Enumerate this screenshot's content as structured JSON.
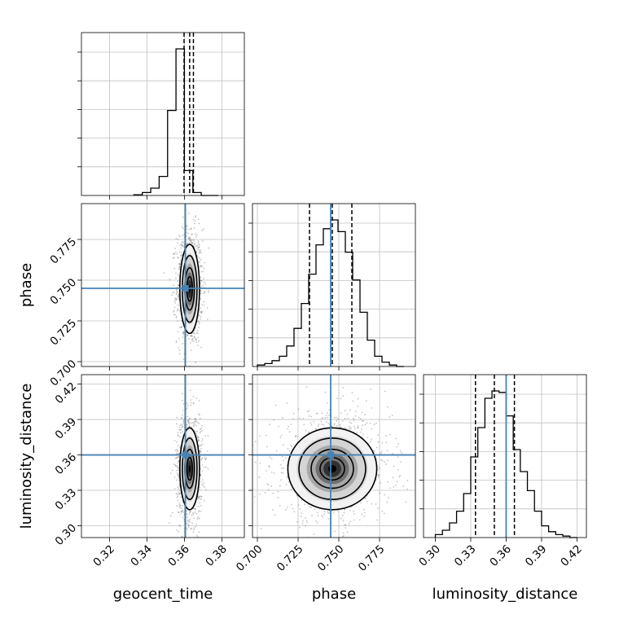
{
  "chart_data": {
    "type": "corner",
    "colors": {
      "truth": "#4682b4",
      "hist": "#000000",
      "grid": "#c0c0c0",
      "scatter": "#555555"
    },
    "parameters": [
      {
        "name": "geocent_time",
        "label": "geocent_time",
        "ticks": [
          "0.32",
          "0.34",
          "0.36",
          "0.38"
        ],
        "tick_values": [
          0.32,
          0.34,
          0.36,
          0.38
        ],
        "range": [
          0.305,
          0.392
        ],
        "truth": 0.3605,
        "quantiles": [
          0.3598,
          0.3628,
          0.3648
        ],
        "hist": {
          "edges": [
            0.333,
            0.3375,
            0.342,
            0.3465,
            0.351,
            0.3555,
            0.36,
            0.3645,
            0.369,
            0.3735,
            0.378
          ],
          "counts": [
            0.005,
            0.02,
            0.05,
            0.13,
            0.58,
            1.0,
            0.17,
            0.02,
            0.0,
            0.0
          ]
        }
      },
      {
        "name": "phase",
        "label": "phase",
        "ticks": [
          "0.700",
          "0.725",
          "0.750",
          "0.775"
        ],
        "tick_values": [
          0.7,
          0.725,
          0.75,
          0.775
        ],
        "range": [
          0.697,
          0.797
        ],
        "truth": 0.745,
        "quantiles": [
          0.732,
          0.746,
          0.758
        ],
        "hist": {
          "edges": [
            0.7,
            0.7045,
            0.709,
            0.7135,
            0.718,
            0.7225,
            0.727,
            0.7315,
            0.736,
            0.7405,
            0.745,
            0.7495,
            0.754,
            0.7585,
            0.763,
            0.7675,
            0.772,
            0.7765,
            0.781,
            0.7855,
            0.79
          ],
          "counts": [
            0.01,
            0.02,
            0.04,
            0.07,
            0.14,
            0.26,
            0.43,
            0.63,
            0.83,
            0.94,
            1.0,
            0.92,
            0.78,
            0.59,
            0.37,
            0.18,
            0.07,
            0.03,
            0.01,
            0.0
          ]
        }
      },
      {
        "name": "luminosity_distance",
        "label": "luminosity_distance",
        "ticks": [
          "0.30",
          "0.33",
          "0.36",
          "0.39",
          "0.42"
        ],
        "tick_values": [
          0.3,
          0.33,
          0.36,
          0.39,
          0.42
        ],
        "range": [
          0.29,
          0.428
        ],
        "truth": 0.36,
        "quantiles": [
          0.334,
          0.35,
          0.367
        ],
        "hist": {
          "edges": [
            0.3,
            0.306,
            0.312,
            0.318,
            0.324,
            0.33,
            0.336,
            0.342,
            0.348,
            0.354,
            0.36,
            0.366,
            0.372,
            0.378,
            0.384,
            0.39,
            0.396,
            0.402,
            0.408,
            0.414,
            0.42
          ],
          "counts": [
            0.02,
            0.05,
            0.1,
            0.18,
            0.3,
            0.55,
            0.75,
            0.95,
            1.0,
            0.99,
            0.83,
            0.6,
            0.45,
            0.32,
            0.18,
            0.08,
            0.04,
            0.02,
            0.01,
            0.0
          ]
        }
      }
    ],
    "grid": true,
    "show_truth_lines": true
  }
}
